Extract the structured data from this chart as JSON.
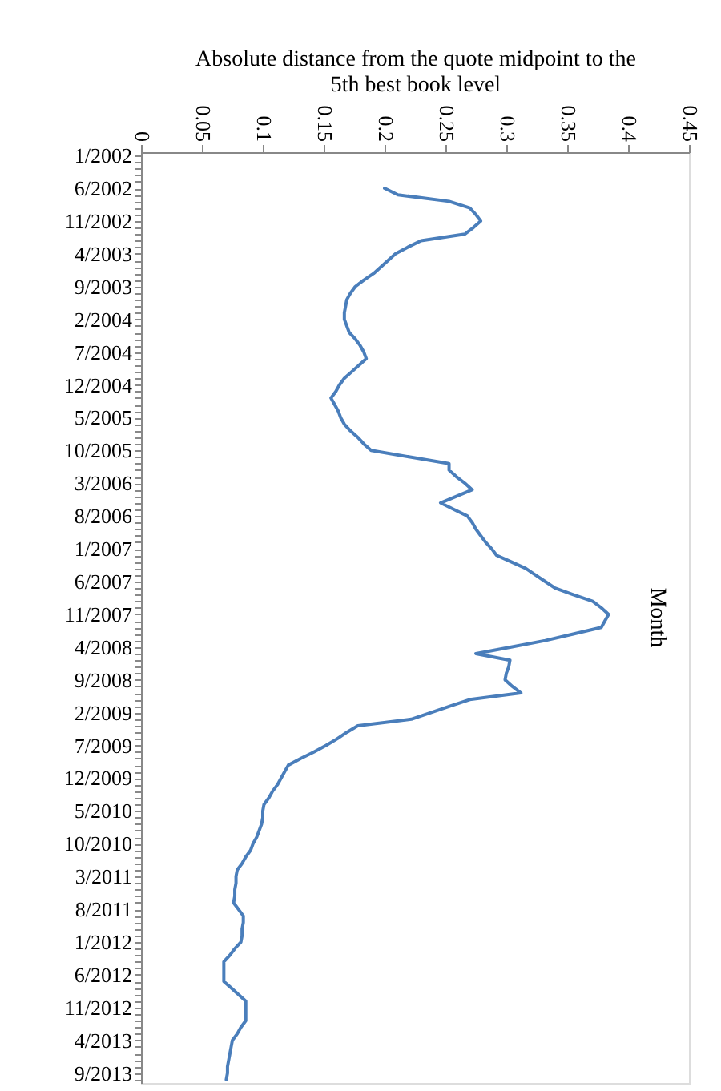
{
  "chart_data": {
    "type": "line",
    "orientation": "horizontal",
    "xlabel": "Absolute distance from the quote midpoint to the\n5th best book level",
    "ylabel": "Month",
    "categories": [
      "1/2002",
      null,
      null,
      null,
      null,
      "6/2002",
      null,
      null,
      null,
      null,
      "11/2002",
      null,
      null,
      null,
      null,
      "4/2003",
      null,
      null,
      null,
      null,
      "9/2003",
      null,
      null,
      null,
      null,
      "2/2004",
      null,
      null,
      null,
      null,
      "7/2004",
      null,
      null,
      null,
      null,
      "12/2004",
      null,
      null,
      null,
      null,
      "5/2005",
      null,
      null,
      null,
      null,
      "10/2005",
      null,
      null,
      null,
      null,
      "3/2006",
      null,
      null,
      null,
      null,
      "8/2006",
      null,
      null,
      null,
      null,
      "1/2007",
      null,
      null,
      null,
      null,
      "6/2007",
      null,
      null,
      null,
      null,
      "11/2007",
      null,
      null,
      null,
      null,
      "4/2008",
      null,
      null,
      null,
      null,
      "9/2008",
      null,
      null,
      null,
      null,
      "2/2009",
      null,
      null,
      null,
      null,
      "7/2009",
      null,
      null,
      null,
      null,
      "12/2009",
      null,
      null,
      null,
      null,
      "5/2010",
      null,
      null,
      null,
      null,
      "10/2010",
      null,
      null,
      null,
      null,
      "3/2011",
      null,
      null,
      null,
      null,
      "8/2011",
      null,
      null,
      null,
      null,
      "1/2012",
      null,
      null,
      null,
      null,
      "6/2012",
      null,
      null,
      null,
      null,
      "11/2012",
      null,
      null,
      null,
      null,
      "4/2013",
      null,
      null,
      null,
      null,
      "9/2013",
      null
    ],
    "series": [
      {
        "color": "#4a7ebb",
        "values": [
          null,
          null,
          null,
          null,
          null,
          0.2,
          0.211,
          0.253,
          0.27,
          0.275,
          0.279,
          0.273,
          0.266,
          0.23,
          0.219,
          0.209,
          0.203,
          0.197,
          0.191,
          0.183,
          0.176,
          0.172,
          0.169,
          0.168,
          0.167,
          0.167,
          0.169,
          0.171,
          0.176,
          0.18,
          0.183,
          0.185,
          0.179,
          0.173,
          0.167,
          0.163,
          0.16,
          0.156,
          0.159,
          0.162,
          0.164,
          0.167,
          0.172,
          0.178,
          0.183,
          0.189,
          0.221,
          0.253,
          0.253,
          0.259,
          0.266,
          0.272,
          0.259,
          0.246,
          0.257,
          0.268,
          0.272,
          0.275,
          0.279,
          0.283,
          0.288,
          0.292,
          0.304,
          0.316,
          0.324,
          0.332,
          0.34,
          0.355,
          0.371,
          0.378,
          0.384,
          0.381,
          0.378,
          0.355,
          0.332,
          0.304,
          0.275,
          0.303,
          0.302,
          0.3,
          0.299,
          0.305,
          0.312,
          0.27,
          0.254,
          0.238,
          0.222,
          0.178,
          0.169,
          0.161,
          0.152,
          0.142,
          0.131,
          0.121,
          0.118,
          0.115,
          0.112,
          0.108,
          0.105,
          0.101,
          0.1,
          0.1,
          0.099,
          0.097,
          0.095,
          0.092,
          0.09,
          0.086,
          0.083,
          0.079,
          0.078,
          0.078,
          0.077,
          0.077,
          0.076,
          0.08,
          0.084,
          0.084,
          0.083,
          0.083,
          0.082,
          0.077,
          0.073,
          0.068,
          0.068,
          0.068,
          0.068,
          0.074,
          0.08,
          0.086,
          0.086,
          0.086,
          0.086,
          0.082,
          0.079,
          0.075,
          0.074,
          0.073,
          0.072,
          0.071,
          0.071,
          0.07
        ]
      }
    ],
    "xlim": [
      0,
      0.45
    ],
    "xticks": [
      0,
      0.05,
      0.1,
      0.15,
      0.2,
      0.25,
      0.3,
      0.35,
      0.4,
      0.45
    ]
  }
}
